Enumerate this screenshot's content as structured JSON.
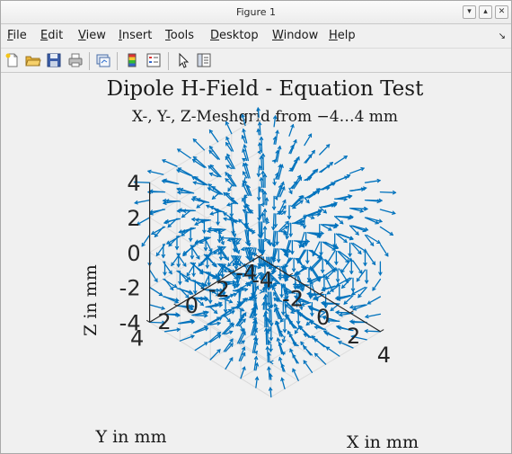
{
  "window": {
    "title": "Figure 1",
    "buttons": [
      "▾",
      "▴",
      "✕"
    ]
  },
  "menu": [
    "File",
    "Edit",
    "View",
    "Insert",
    "Tools",
    "Desktop",
    "Window",
    "Help"
  ],
  "menu_underline": [
    "F",
    "E",
    "V",
    "I",
    "T",
    "D",
    "W",
    "H"
  ],
  "toolbar": {
    "buttons": [
      "new-figure-icon",
      "open-file-icon",
      "save-icon",
      "print-icon",
      "link-plot-icon",
      "colorbar-icon",
      "legend-icon",
      "edit-plot-icon",
      "property-inspector-icon"
    ]
  },
  "colors": {
    "quiver": "#0072bd",
    "axes": "#262626",
    "grid": "#dcdcdc",
    "background": "#f0f0f0"
  },
  "chart_data": {
    "type": "quiver3",
    "title": "Dipole H-Field - Equation Test",
    "subtitle": "X-, Y-, Z-Meshgrid from −4…4 mm",
    "xlabel": "X in mm",
    "ylabel": "Y in mm",
    "zlabel": "Z in mm",
    "xlim": [
      -4,
      4
    ],
    "ylim": [
      -4,
      4
    ],
    "zlim": [
      -4,
      4
    ],
    "x_ticks": [
      "-4",
      "-2",
      "0",
      "2",
      "4"
    ],
    "y_ticks": [
      "4",
      "2",
      "0",
      "-2",
      "-4"
    ],
    "z_ticks": [
      "4",
      "2",
      "0",
      "-2",
      "-4"
    ],
    "grid_range": [
      -4,
      4
    ],
    "grid_points_per_axis": 9,
    "field": "magnetic dipole H-field, moment along z",
    "grid": true
  }
}
